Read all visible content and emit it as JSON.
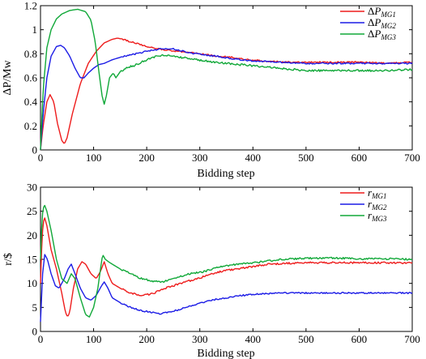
{
  "chart_data": [
    {
      "type": "line",
      "xlabel": "Bidding step",
      "ylabel": "ΔP/Mw",
      "xlim": [
        0,
        700
      ],
      "ylim": [
        0,
        1.2
      ],
      "xticks": [
        "0",
        "100",
        "200",
        "300",
        "400",
        "500",
        "600",
        "700"
      ],
      "yticks": [
        "0",
        "0.2",
        "0.4",
        "0.6",
        "0.8",
        "1",
        "1.2"
      ],
      "legend_position": "top-right",
      "series": [
        {
          "name": "ΔP_MG1",
          "label_main": "ΔP",
          "label_sub": "MG1",
          "color": "#ee1c1c",
          "points": [
            [
              0,
              0
            ],
            [
              5,
              0.2
            ],
            [
              12,
              0.4
            ],
            [
              18,
              0.46
            ],
            [
              25,
              0.4
            ],
            [
              32,
              0.22
            ],
            [
              40,
              0.08
            ],
            [
              45,
              0.05
            ],
            [
              50,
              0.1
            ],
            [
              60,
              0.3
            ],
            [
              75,
              0.55
            ],
            [
              90,
              0.72
            ],
            [
              105,
              0.82
            ],
            [
              120,
              0.89
            ],
            [
              135,
              0.92
            ],
            [
              145,
              0.93
            ],
            [
              155,
              0.92
            ],
            [
              170,
              0.9
            ],
            [
              185,
              0.88
            ],
            [
              200,
              0.86
            ],
            [
              220,
              0.84
            ],
            [
              240,
              0.83
            ],
            [
              260,
              0.82
            ],
            [
              280,
              0.81
            ],
            [
              300,
              0.8
            ],
            [
              330,
              0.78
            ],
            [
              360,
              0.77
            ],
            [
              390,
              0.75
            ],
            [
              420,
              0.74
            ],
            [
              460,
              0.73
            ],
            [
              500,
              0.73
            ],
            [
              550,
              0.73
            ],
            [
              600,
              0.73
            ],
            [
              650,
              0.72
            ],
            [
              700,
              0.73
            ]
          ],
          "noise": 0.006
        },
        {
          "name": "ΔP_MG2",
          "label_main": "ΔP",
          "label_sub": "MG2",
          "color": "#1c1ce6",
          "points": [
            [
              0,
              0
            ],
            [
              5,
              0.3
            ],
            [
              12,
              0.6
            ],
            [
              20,
              0.78
            ],
            [
              30,
              0.86
            ],
            [
              38,
              0.87
            ],
            [
              45,
              0.85
            ],
            [
              55,
              0.78
            ],
            [
              65,
              0.68
            ],
            [
              75,
              0.6
            ],
            [
              82,
              0.6
            ],
            [
              90,
              0.64
            ],
            [
              100,
              0.68
            ],
            [
              110,
              0.71
            ],
            [
              120,
              0.72
            ],
            [
              135,
              0.75
            ],
            [
              150,
              0.77
            ],
            [
              170,
              0.79
            ],
            [
              190,
              0.81
            ],
            [
              210,
              0.83
            ],
            [
              230,
              0.84
            ],
            [
              250,
              0.84
            ],
            [
              270,
              0.82
            ],
            [
              290,
              0.8
            ],
            [
              310,
              0.79
            ],
            [
              330,
              0.78
            ],
            [
              360,
              0.76
            ],
            [
              400,
              0.74
            ],
            [
              450,
              0.73
            ],
            [
              500,
              0.72
            ],
            [
              550,
              0.72
            ],
            [
              600,
              0.72
            ],
            [
              650,
              0.72
            ],
            [
              700,
              0.72
            ]
          ],
          "noise": 0.006
        },
        {
          "name": "ΔP_MG3",
          "label_main": "ΔP",
          "label_sub": "MG3",
          "color": "#10a838",
          "points": [
            [
              0,
              0
            ],
            [
              5,
              0.5
            ],
            [
              12,
              0.85
            ],
            [
              20,
              1.0
            ],
            [
              30,
              1.09
            ],
            [
              40,
              1.13
            ],
            [
              55,
              1.16
            ],
            [
              70,
              1.17
            ],
            [
              85,
              1.15
            ],
            [
              95,
              1.08
            ],
            [
              103,
              0.9
            ],
            [
              110,
              0.65
            ],
            [
              116,
              0.45
            ],
            [
              120,
              0.38
            ],
            [
              124,
              0.45
            ],
            [
              130,
              0.6
            ],
            [
              137,
              0.64
            ],
            [
              142,
              0.6
            ],
            [
              150,
              0.65
            ],
            [
              160,
              0.68
            ],
            [
              175,
              0.7
            ],
            [
              190,
              0.73
            ],
            [
              205,
              0.76
            ],
            [
              220,
              0.78
            ],
            [
              235,
              0.79
            ],
            [
              250,
              0.78
            ],
            [
              280,
              0.76
            ],
            [
              310,
              0.74
            ],
            [
              350,
              0.72
            ],
            [
              400,
              0.7
            ],
            [
              450,
              0.68
            ],
            [
              500,
              0.66
            ],
            [
              550,
              0.66
            ],
            [
              600,
              0.66
            ],
            [
              650,
              0.66
            ],
            [
              700,
              0.67
            ]
          ],
          "noise": 0.008
        }
      ]
    },
    {
      "type": "line",
      "xlabel": "Bidding step",
      "ylabel": "r/$",
      "xlim": [
        0,
        700
      ],
      "ylim": [
        0,
        30
      ],
      "xticks": [
        "0",
        "100",
        "200",
        "300",
        "400",
        "500",
        "600",
        "700"
      ],
      "yticks": [
        "0",
        "5",
        "10",
        "15",
        "20",
        "25",
        "30"
      ],
      "legend_position": "top-right",
      "series": [
        {
          "name": "r_MG1",
          "label_main": "r",
          "label_sub": "MG1",
          "color": "#ee1c1c",
          "points": [
            [
              0,
              10
            ],
            [
              3,
              20
            ],
            [
              7,
              24
            ],
            [
              12,
              22
            ],
            [
              20,
              17
            ],
            [
              30,
              13
            ],
            [
              40,
              8
            ],
            [
              47,
              4
            ],
            [
              51,
              3
            ],
            [
              55,
              4
            ],
            [
              62,
              9
            ],
            [
              70,
              13
            ],
            [
              78,
              14.5
            ],
            [
              85,
              14
            ],
            [
              95,
              12
            ],
            [
              105,
              11
            ],
            [
              113,
              12.5
            ],
            [
              120,
              14.5
            ],
            [
              127,
              12
            ],
            [
              135,
              10
            ],
            [
              150,
              9
            ],
            [
              170,
              8
            ],
            [
              190,
              7.5
            ],
            [
              210,
              7.8
            ],
            [
              230,
              8.8
            ],
            [
              250,
              9.5
            ],
            [
              280,
              10.5
            ],
            [
              310,
              11.5
            ],
            [
              340,
              12.5
            ],
            [
              370,
              13
            ],
            [
              400,
              13.5
            ],
            [
              430,
              14
            ],
            [
              470,
              14.2
            ],
            [
              500,
              14.3
            ],
            [
              550,
              14.3
            ],
            [
              600,
              14.3
            ],
            [
              650,
              14.3
            ],
            [
              700,
              14.2
            ]
          ],
          "noise": 0.18
        },
        {
          "name": "r_MG2",
          "label_main": "r",
          "label_sub": "MG2",
          "color": "#1c1ce6",
          "points": [
            [
              0,
              2
            ],
            [
              4,
              12
            ],
            [
              8,
              16
            ],
            [
              13,
              15
            ],
            [
              20,
              12
            ],
            [
              28,
              9.5
            ],
            [
              35,
              9
            ],
            [
              45,
              11
            ],
            [
              52,
              13
            ],
            [
              58,
              14
            ],
            [
              65,
              12
            ],
            [
              75,
              9
            ],
            [
              85,
              7
            ],
            [
              95,
              6.5
            ],
            [
              105,
              7.5
            ],
            [
              115,
              9.5
            ],
            [
              120,
              10.3
            ],
            [
              127,
              9
            ],
            [
              135,
              7
            ],
            [
              150,
              6
            ],
            [
              170,
              5
            ],
            [
              190,
              4.3
            ],
            [
              210,
              4
            ],
            [
              225,
              3.7
            ],
            [
              240,
              4
            ],
            [
              260,
              4.5
            ],
            [
              290,
              5.5
            ],
            [
              320,
              6.5
            ],
            [
              350,
              7
            ],
            [
              380,
              7.5
            ],
            [
              410,
              7.8
            ],
            [
              450,
              8
            ],
            [
              500,
              8
            ],
            [
              550,
              8
            ],
            [
              600,
              8
            ],
            [
              650,
              8
            ],
            [
              700,
              8
            ]
          ],
          "noise": 0.15
        },
        {
          "name": "r_MG3",
          "label_main": "r",
          "label_sub": "MG3",
          "color": "#10a838",
          "points": [
            [
              0,
              15
            ],
            [
              3,
              24
            ],
            [
              7,
              26.5
            ],
            [
              12,
              25
            ],
            [
              20,
              21
            ],
            [
              30,
              15
            ],
            [
              40,
              11
            ],
            [
              50,
              10
            ],
            [
              58,
              12
            ],
            [
              65,
              11
            ],
            [
              75,
              7
            ],
            [
              85,
              3.5
            ],
            [
              92,
              3
            ],
            [
              100,
              5
            ],
            [
              108,
              9
            ],
            [
              113,
              13
            ],
            [
              117,
              16
            ],
            [
              122,
              15
            ],
            [
              128,
              14.5
            ],
            [
              135,
              14
            ],
            [
              150,
              13
            ],
            [
              170,
              12
            ],
            [
              190,
              11
            ],
            [
              210,
              10.5
            ],
            [
              230,
              10.3
            ],
            [
              250,
              11
            ],
            [
              280,
              12
            ],
            [
              310,
              12.5
            ],
            [
              340,
              13.5
            ],
            [
              370,
              14
            ],
            [
              400,
              14.3
            ],
            [
              420,
              14.5
            ],
            [
              450,
              15
            ],
            [
              500,
              15.2
            ],
            [
              550,
              15.3
            ],
            [
              600,
              15.1
            ],
            [
              650,
              15.1
            ],
            [
              700,
              15
            ]
          ],
          "noise": 0.18
        }
      ]
    }
  ]
}
